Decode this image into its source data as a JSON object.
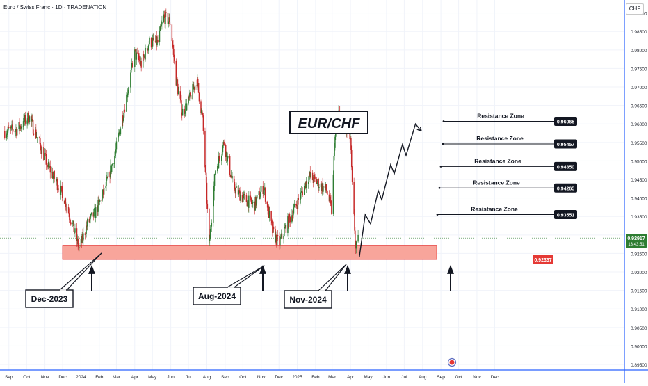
{
  "symbol_title": "Euro / Swiss Franc · 1D · TRADENATION",
  "currency": "CHF",
  "colors": {
    "up": "#26a69a",
    "down": "#e53935",
    "up_candle": "#2e7d32",
    "down_candle": "#c62828",
    "support_fill": "#f8a59b",
    "support_stroke": "#e53935",
    "grid": "#f0f3fa",
    "axis_border": "#2962ff",
    "price_badge": "#2e7d32",
    "support_badge": "#e53935",
    "resistance_badge": "#131722"
  },
  "chart_data": {
    "type": "candlestick",
    "title": "EUR/CHF",
    "ylim": [
      0.8935,
      0.9935
    ],
    "y_ticks": [
      "0.99000",
      "0.98500",
      "0.98000",
      "0.97500",
      "0.97000",
      "0.96500",
      "0.96000",
      "0.95500",
      "0.95000",
      "0.94500",
      "0.94000",
      "0.93500",
      "0.93000",
      "0.92500",
      "0.92000",
      "0.91500",
      "0.91000",
      "0.90500",
      "0.90000",
      "0.89500"
    ],
    "x_ticks": [
      "Sep",
      "Oct",
      "Nov",
      "Dec",
      "2024",
      "Feb",
      "Mar",
      "Apr",
      "May",
      "Jun",
      "Jul",
      "Aug",
      "Sep",
      "Oct",
      "Nov",
      "Dec",
      "2025",
      "Feb",
      "Mar",
      "Apr",
      "May",
      "Jun",
      "Jul",
      "Aug",
      "Sep",
      "Oct",
      "Nov",
      "Dec"
    ],
    "current_price": "0.92917",
    "countdown": "13:43:51",
    "support_zone": {
      "low": 0.9234,
      "high": 0.9272,
      "value_label": "0.92337"
    },
    "resistance_zones": [
      {
        "label": "Resistance Zone",
        "value": "0.93551",
        "price": 0.9355
      },
      {
        "label": "Resistance Zone",
        "value": "0.94265",
        "price": 0.9427
      },
      {
        "label": "Resistance Zone",
        "value": "0.94850",
        "price": 0.9485
      },
      {
        "label": "Resistance Zone",
        "value": "0.95457",
        "price": 0.9546
      },
      {
        "label": "Resistance Zone",
        "value": "0.96065",
        "price": 0.9607
      }
    ],
    "callouts": [
      {
        "label": "Dec-2023"
      },
      {
        "label": "Aug-2024"
      },
      {
        "label": "Nov-2024"
      }
    ],
    "path_keypoints": [
      {
        "t": "2023-08-25",
        "p": 0.958
      },
      {
        "t": "2023-09-15",
        "p": 0.9585
      },
      {
        "t": "2023-10-05",
        "p": 0.962
      },
      {
        "t": "2023-10-20",
        "p": 0.956
      },
      {
        "t": "2023-11-05",
        "p": 0.949
      },
      {
        "t": "2023-11-20",
        "p": 0.9445
      },
      {
        "t": "2023-12-05",
        "p": 0.9395
      },
      {
        "t": "2023-12-20",
        "p": 0.9315
      },
      {
        "t": "2023-12-29",
        "p": 0.9262
      },
      {
        "t": "2024-01-12",
        "p": 0.933
      },
      {
        "t": "2024-01-25",
        "p": 0.936
      },
      {
        "t": "2024-02-10",
        "p": 0.942
      },
      {
        "t": "2024-02-28",
        "p": 0.952
      },
      {
        "t": "2024-03-15",
        "p": 0.965
      },
      {
        "t": "2024-04-01",
        "p": 0.979
      },
      {
        "t": "2024-04-12",
        "p": 0.976
      },
      {
        "t": "2024-04-25",
        "p": 0.982
      },
      {
        "t": "2024-05-10",
        "p": 0.982
      },
      {
        "t": "2024-05-20",
        "p": 0.989
      },
      {
        "t": "2024-05-31",
        "p": 0.9875
      },
      {
        "t": "2024-06-10",
        "p": 0.972
      },
      {
        "t": "2024-06-20",
        "p": 0.963
      },
      {
        "t": "2024-07-01",
        "p": 0.966
      },
      {
        "t": "2024-07-15",
        "p": 0.972
      },
      {
        "t": "2024-07-25",
        "p": 0.961
      },
      {
        "t": "2024-08-05",
        "p": 0.927
      },
      {
        "t": "2024-08-15",
        "p": 0.947
      },
      {
        "t": "2024-08-30",
        "p": 0.955
      },
      {
        "t": "2024-09-15",
        "p": 0.943
      },
      {
        "t": "2024-10-01",
        "p": 0.94
      },
      {
        "t": "2024-10-20",
        "p": 0.938
      },
      {
        "t": "2024-11-05",
        "p": 0.943
      },
      {
        "t": "2024-11-20",
        "p": 0.931
      },
      {
        "t": "2024-12-01",
        "p": 0.9275
      },
      {
        "t": "2024-12-15",
        "p": 0.933
      },
      {
        "t": "2025-01-05",
        "p": 0.94
      },
      {
        "t": "2025-01-20",
        "p": 0.946
      },
      {
        "t": "2025-02-05",
        "p": 0.944
      },
      {
        "t": "2025-02-20",
        "p": 0.942
      },
      {
        "t": "2025-03-01",
        "p": 0.936
      },
      {
        "t": "2025-03-05",
        "p": 0.955
      },
      {
        "t": "2025-03-12",
        "p": 0.963
      },
      {
        "t": "2025-03-22",
        "p": 0.959
      },
      {
        "t": "2025-04-01",
        "p": 0.956
      },
      {
        "t": "2025-04-04",
        "p": 0.943
      },
      {
        "t": "2025-04-10",
        "p": 0.926
      },
      {
        "t": "2025-04-15",
        "p": 0.929
      }
    ],
    "projection": [
      {
        "t": "2025-04-16",
        "p": 0.924
      },
      {
        "t": "2025-04-26",
        "p": 0.9355
      },
      {
        "t": "2025-05-05",
        "p": 0.933
      },
      {
        "t": "2025-05-18",
        "p": 0.942
      },
      {
        "t": "2025-05-24",
        "p": 0.9395
      },
      {
        "t": "2025-06-08",
        "p": 0.949
      },
      {
        "t": "2025-06-14",
        "p": 0.9465
      },
      {
        "t": "2025-06-28",
        "p": 0.9545
      },
      {
        "t": "2025-07-04",
        "p": 0.9515
      },
      {
        "t": "2025-07-20",
        "p": 0.96
      },
      {
        "t": "2025-07-30",
        "p": 0.958
      }
    ]
  }
}
